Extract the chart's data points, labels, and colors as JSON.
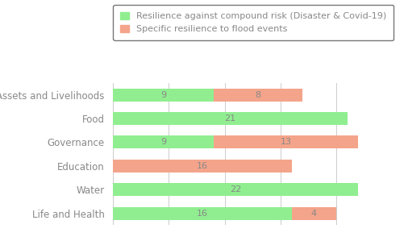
{
  "categories": [
    "Assets and Livelihoods",
    "Food",
    "Governance",
    "Education",
    "Water",
    "Life and Health"
  ],
  "green_values": [
    9,
    21,
    9,
    0,
    22,
    16
  ],
  "salmon_values": [
    8,
    0,
    13,
    16,
    0,
    4
  ],
  "green_labels": [
    9,
    21,
    9,
    null,
    22,
    16
  ],
  "salmon_labels": [
    8,
    null,
    13,
    16,
    null,
    4
  ],
  "green_color": "#90EE90",
  "salmon_color": "#F4A48A",
  "legend_green": "Resilience against compound risk (Disaster & Covid-19)",
  "legend_salmon": "Specific resilience to flood events",
  "xlim_max": 25,
  "bar_height": 0.55,
  "label_fontsize": 8,
  "axis_label_fontsize": 8.5,
  "legend_fontsize": 8,
  "background_color": "#ffffff",
  "grid_color": "#cccccc",
  "text_color": "#888888"
}
